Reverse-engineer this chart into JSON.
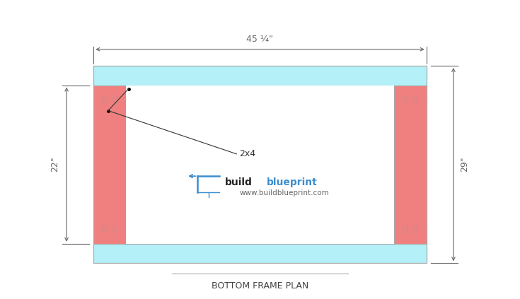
{
  "bg_color": "#ffffff",
  "top_board_color": "#b3f0f7",
  "bottom_board_color": "#b3f0f7",
  "left_board_color": "#f08080",
  "right_board_color": "#f08080",
  "inner_fill_color": "#ffffff",
  "title": "BOTTOM FRAME PLAN",
  "dim_top_label": "45 ¼\"",
  "dim_left_label": "22\"",
  "dim_right_label": "29\"",
  "label_2x4": "2x4",
  "brand_build": "build",
  "brand_blueprint": "blueprint",
  "brand_url": "www.buildblueprint.com",
  "dim_color": "#666666",
  "border_color": "#aaaaaa",
  "screw_color": "#cc8888",
  "title_color": "#444444",
  "title_fontsize": 9,
  "brand_build_color": "#222222",
  "brand_blueprint_color": "#3b8ed0"
}
